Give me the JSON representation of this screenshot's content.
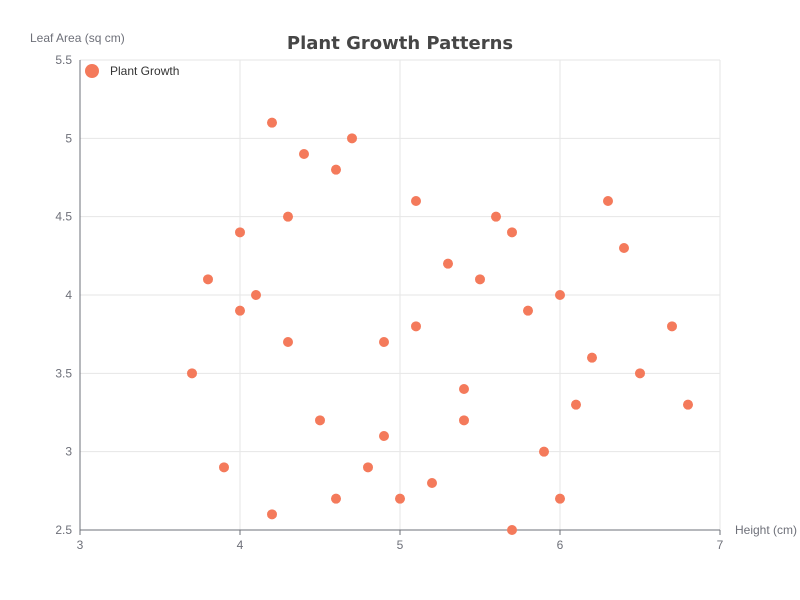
{
  "chart_data": {
    "type": "scatter",
    "title": "Plant Growth Patterns",
    "xlabel": "Height (cm)",
    "ylabel": "Leaf Area (sq cm)",
    "xlim": [
      3,
      7
    ],
    "ylim": [
      2.5,
      5.5
    ],
    "x_ticks": [
      "3",
      "4",
      "5",
      "6",
      "7"
    ],
    "y_ticks": [
      "2.5",
      "3",
      "3.5",
      "4",
      "4.5",
      "5",
      "5.5"
    ],
    "grid": true,
    "legend_position": "top-left",
    "series": [
      {
        "name": "Plant Growth",
        "color": "#f47a5b",
        "points": [
          [
            4.2,
            5.1
          ],
          [
            4.7,
            5.0
          ],
          [
            4.4,
            4.9
          ],
          [
            4.6,
            4.8
          ],
          [
            5.1,
            4.6
          ],
          [
            6.3,
            4.6
          ],
          [
            4.3,
            4.5
          ],
          [
            5.6,
            4.5
          ],
          [
            4.0,
            4.4
          ],
          [
            5.7,
            4.4
          ],
          [
            6.4,
            4.3
          ],
          [
            5.3,
            4.2
          ],
          [
            3.8,
            4.1
          ],
          [
            5.5,
            4.1
          ],
          [
            4.1,
            4.0
          ],
          [
            6.0,
            4.0
          ],
          [
            4.0,
            3.9
          ],
          [
            5.8,
            3.9
          ],
          [
            5.1,
            3.8
          ],
          [
            6.7,
            3.8
          ],
          [
            4.3,
            3.7
          ],
          [
            4.9,
            3.7
          ],
          [
            6.2,
            3.6
          ],
          [
            3.7,
            3.5
          ],
          [
            6.5,
            3.5
          ],
          [
            5.4,
            3.4
          ],
          [
            6.1,
            3.3
          ],
          [
            6.8,
            3.3
          ],
          [
            4.5,
            3.2
          ],
          [
            5.4,
            3.2
          ],
          [
            4.9,
            3.1
          ],
          [
            5.9,
            3.0
          ],
          [
            3.9,
            2.9
          ],
          [
            4.8,
            2.9
          ],
          [
            5.2,
            2.8
          ],
          [
            4.6,
            2.7
          ],
          [
            5.0,
            2.7
          ],
          [
            6.0,
            2.7
          ],
          [
            4.2,
            2.6
          ],
          [
            5.7,
            2.5
          ]
        ]
      }
    ]
  }
}
